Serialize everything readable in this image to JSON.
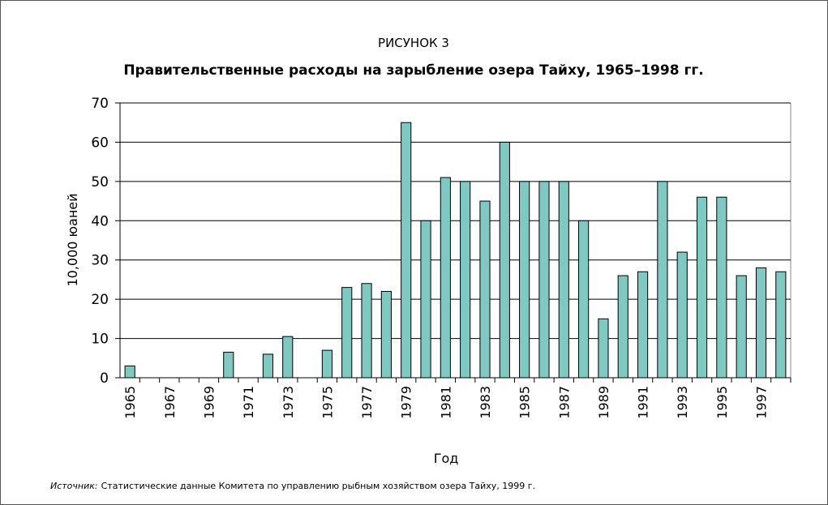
{
  "chart_data": {
    "type": "bar",
    "title": "РИСУНОК 3",
    "subtitle": "Правительственные расходы на зарыбление озера Тайху, 1965–1998 гг.",
    "y_label": "10,000 юаней",
    "x_label": "Год",
    "source_label": "Источник:",
    "source_text": "Статистические данные Комитета по управлению рыбным хозяйством озера Тайху, 1999 г.",
    "categories": [
      "1965",
      null,
      "1967",
      null,
      "1969",
      null,
      "1971",
      null,
      "1973",
      null,
      "1975",
      null,
      "1977",
      null,
      "1979",
      null,
      "1981",
      null,
      "1983",
      null,
      "1985",
      null,
      "1987",
      null,
      "1989",
      null,
      "1991",
      null,
      "1993",
      null,
      "1995",
      null,
      "1997",
      null
    ],
    "values": [
      3,
      0,
      0,
      0,
      0,
      6.5,
      0,
      6,
      10.5,
      0,
      7,
      23,
      24,
      22,
      65,
      40,
      51,
      50,
      45,
      60,
      50,
      50,
      50,
      40,
      15,
      26,
      27,
      50,
      32,
      46,
      46,
      26,
      28,
      27
    ],
    "color": "#80c8c2",
    "ylim": [
      0,
      70
    ],
    "yticks": [
      0,
      10,
      20,
      30,
      40,
      50,
      60,
      70
    ],
    "grid": true
  }
}
